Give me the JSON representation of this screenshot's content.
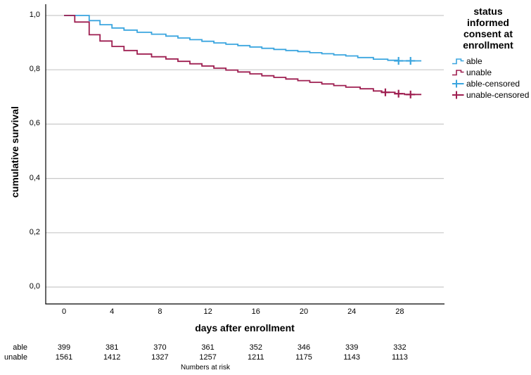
{
  "chart_data": {
    "type": "line",
    "subtype": "kaplan-meier-step-curves",
    "title": "",
    "xlabel": "days after enrollment",
    "ylabel": "cumulative survival",
    "xlim": [
      -1.5,
      31.6
    ],
    "ylim": [
      0.0,
      1.0
    ],
    "grid": "horizontal",
    "xticks": [
      0,
      4,
      8,
      12,
      16,
      20,
      24,
      28
    ],
    "yticks": [
      {
        "value": 0.0,
        "label": "0,0"
      },
      {
        "value": 0.2,
        "label": "0,2"
      },
      {
        "value": 0.4,
        "label": "0,4"
      },
      {
        "value": 0.6,
        "label": "0,6"
      },
      {
        "value": 0.8,
        "label": "0,8"
      },
      {
        "value": 1.0,
        "label": "1,0"
      }
    ],
    "colors": {
      "able": "#3AA5DF",
      "unable": "#9E1E50",
      "grid": "#C9C9C9",
      "axis": "#000000"
    },
    "legend": {
      "position": "right",
      "title": "status informed consent at enrollment",
      "entries": [
        {
          "label": "able",
          "glyph": "step-line",
          "color": "#3AA5DF"
        },
        {
          "label": "unable",
          "glyph": "step-line",
          "color": "#9E1E50"
        },
        {
          "label": "able-censored",
          "glyph": "plus-marker",
          "color": "#3AA5DF"
        },
        {
          "label": "unable-censored",
          "glyph": "plus-marker",
          "color": "#9E1E50"
        }
      ]
    },
    "series": [
      {
        "name": "able",
        "color": "#3AA5DF",
        "steps": [
          [
            0,
            1.0
          ],
          [
            2.1,
            0.981
          ],
          [
            3.0,
            0.966
          ],
          [
            4.0,
            0.954
          ],
          [
            5.0,
            0.946
          ],
          [
            6.1,
            0.938
          ],
          [
            7.3,
            0.931
          ],
          [
            8.5,
            0.924
          ],
          [
            9.5,
            0.917
          ],
          [
            10.5,
            0.911
          ],
          [
            11.5,
            0.905
          ],
          [
            12.5,
            0.899
          ],
          [
            13.5,
            0.894
          ],
          [
            14.5,
            0.889
          ],
          [
            15.5,
            0.884
          ],
          [
            16.5,
            0.879
          ],
          [
            17.5,
            0.875
          ],
          [
            18.5,
            0.871
          ],
          [
            19.5,
            0.867
          ],
          [
            20.5,
            0.863
          ],
          [
            21.5,
            0.859
          ],
          [
            22.5,
            0.855
          ],
          [
            23.5,
            0.851
          ],
          [
            24.5,
            0.845
          ],
          [
            25.8,
            0.839
          ],
          [
            27.0,
            0.835
          ],
          [
            27.8,
            0.833
          ]
        ],
        "end_x": 29.8,
        "censored_x": [
          27.9,
          28.9
        ]
      },
      {
        "name": "unable",
        "color": "#9E1E50",
        "steps": [
          [
            0,
            1.0
          ],
          [
            0.9,
            0.976
          ],
          [
            2.1,
            0.929
          ],
          [
            3.0,
            0.906
          ],
          [
            4.0,
            0.886
          ],
          [
            5.0,
            0.871
          ],
          [
            6.1,
            0.858
          ],
          [
            7.3,
            0.848
          ],
          [
            8.5,
            0.84
          ],
          [
            9.5,
            0.831
          ],
          [
            10.5,
            0.822
          ],
          [
            11.5,
            0.814
          ],
          [
            12.5,
            0.806
          ],
          [
            13.5,
            0.799
          ],
          [
            14.5,
            0.792
          ],
          [
            15.5,
            0.785
          ],
          [
            16.5,
            0.778
          ],
          [
            17.5,
            0.772
          ],
          [
            18.5,
            0.766
          ],
          [
            19.5,
            0.76
          ],
          [
            20.5,
            0.754
          ],
          [
            21.5,
            0.748
          ],
          [
            22.5,
            0.742
          ],
          [
            23.5,
            0.736
          ],
          [
            24.7,
            0.73
          ],
          [
            25.8,
            0.722
          ],
          [
            26.5,
            0.717
          ],
          [
            27.6,
            0.712
          ],
          [
            28.4,
            0.709
          ]
        ],
        "end_x": 29.8,
        "censored_x": [
          26.8,
          27.9,
          28.9
        ]
      }
    ],
    "risk_table": {
      "caption": "Numbers at risk",
      "days": [
        0,
        4,
        8,
        12,
        16,
        20,
        24,
        28
      ],
      "rows": [
        {
          "label": "able",
          "values": [
            "399",
            "381",
            "370",
            "361",
            "352",
            "346",
            "339",
            "332"
          ]
        },
        {
          "label": "unable",
          "values": [
            "1561",
            "1412",
            "1327",
            "1257",
            "1211",
            "1175",
            "1143",
            "1113"
          ]
        }
      ]
    }
  }
}
